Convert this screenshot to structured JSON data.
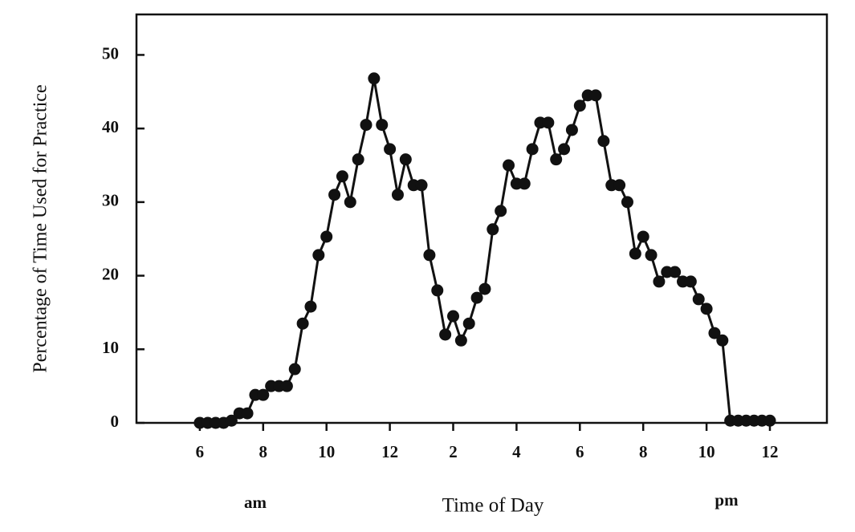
{
  "chart_data": {
    "type": "line",
    "xlabel": "Time of Day",
    "ylabel": "Percentage of Time Used for Practice",
    "annotations": [
      "am",
      "pm"
    ],
    "x": [
      6,
      6.25,
      6.5,
      6.75,
      7,
      7.25,
      7.5,
      7.75,
      8,
      8.25,
      8.5,
      8.75,
      9,
      9.25,
      9.5,
      9.75,
      10,
      10.25,
      10.5,
      10.75,
      11,
      11.25,
      11.5,
      11.75,
      12,
      12.25,
      12.5,
      12.75,
      13,
      13.25,
      13.5,
      13.75,
      14,
      14.25,
      14.5,
      14.75,
      15,
      15.25,
      15.5,
      15.75,
      16,
      16.25,
      16.5,
      16.75,
      17,
      17.25,
      17.5,
      17.75,
      18,
      18.25,
      18.5,
      18.75,
      19,
      19.25,
      19.5,
      19.75,
      20,
      20.25,
      20.5,
      20.75,
      21,
      21.25,
      21.5,
      21.75,
      22,
      22.25,
      22.5,
      22.75,
      23,
      23.25,
      23.5,
      23.75,
      24
    ],
    "series": [
      {
        "color": "#111111",
        "values": [
          0,
          0,
          0,
          0,
          0.3,
          1.3,
          1.3,
          3.8,
          3.8,
          5,
          5,
          5,
          7.3,
          13.5,
          15.8,
          22.8,
          25.3,
          31,
          33.5,
          30,
          35.8,
          40.5,
          46.8,
          40.5,
          37.2,
          31,
          35.8,
          32.3,
          32.3,
          22.8,
          18,
          12,
          14.5,
          11.2,
          13.5,
          17,
          18.2,
          26.3,
          28.8,
          35,
          32.5,
          32.5,
          37.2,
          40.8,
          40.8,
          35.8,
          37.2,
          39.8,
          43.1,
          44.5,
          44.5,
          38.3,
          32.3,
          32.3,
          30,
          23,
          25.3,
          22.8,
          19.2,
          20.5,
          20.5,
          19.2,
          19.2,
          16.8,
          15.5,
          12.2,
          11.2,
          0.3,
          0.3,
          0.3,
          0.3,
          0.3,
          0.3
        ]
      }
    ],
    "xlim": [
      4,
      25.8
    ],
    "xticks": [
      6,
      8,
      10,
      12,
      {
        "value": 14,
        "label": "2"
      },
      {
        "value": 16,
        "label": "4"
      },
      {
        "value": 18,
        "label": "6"
      },
      {
        "value": 20,
        "label": "8"
      },
      {
        "value": 22,
        "label": "10"
      },
      {
        "value": 24,
        "label": "12"
      }
    ],
    "ylim": [
      0,
      55.5
    ],
    "yticks": [
      0,
      10,
      20,
      30,
      40,
      50
    ],
    "grid": false
  }
}
